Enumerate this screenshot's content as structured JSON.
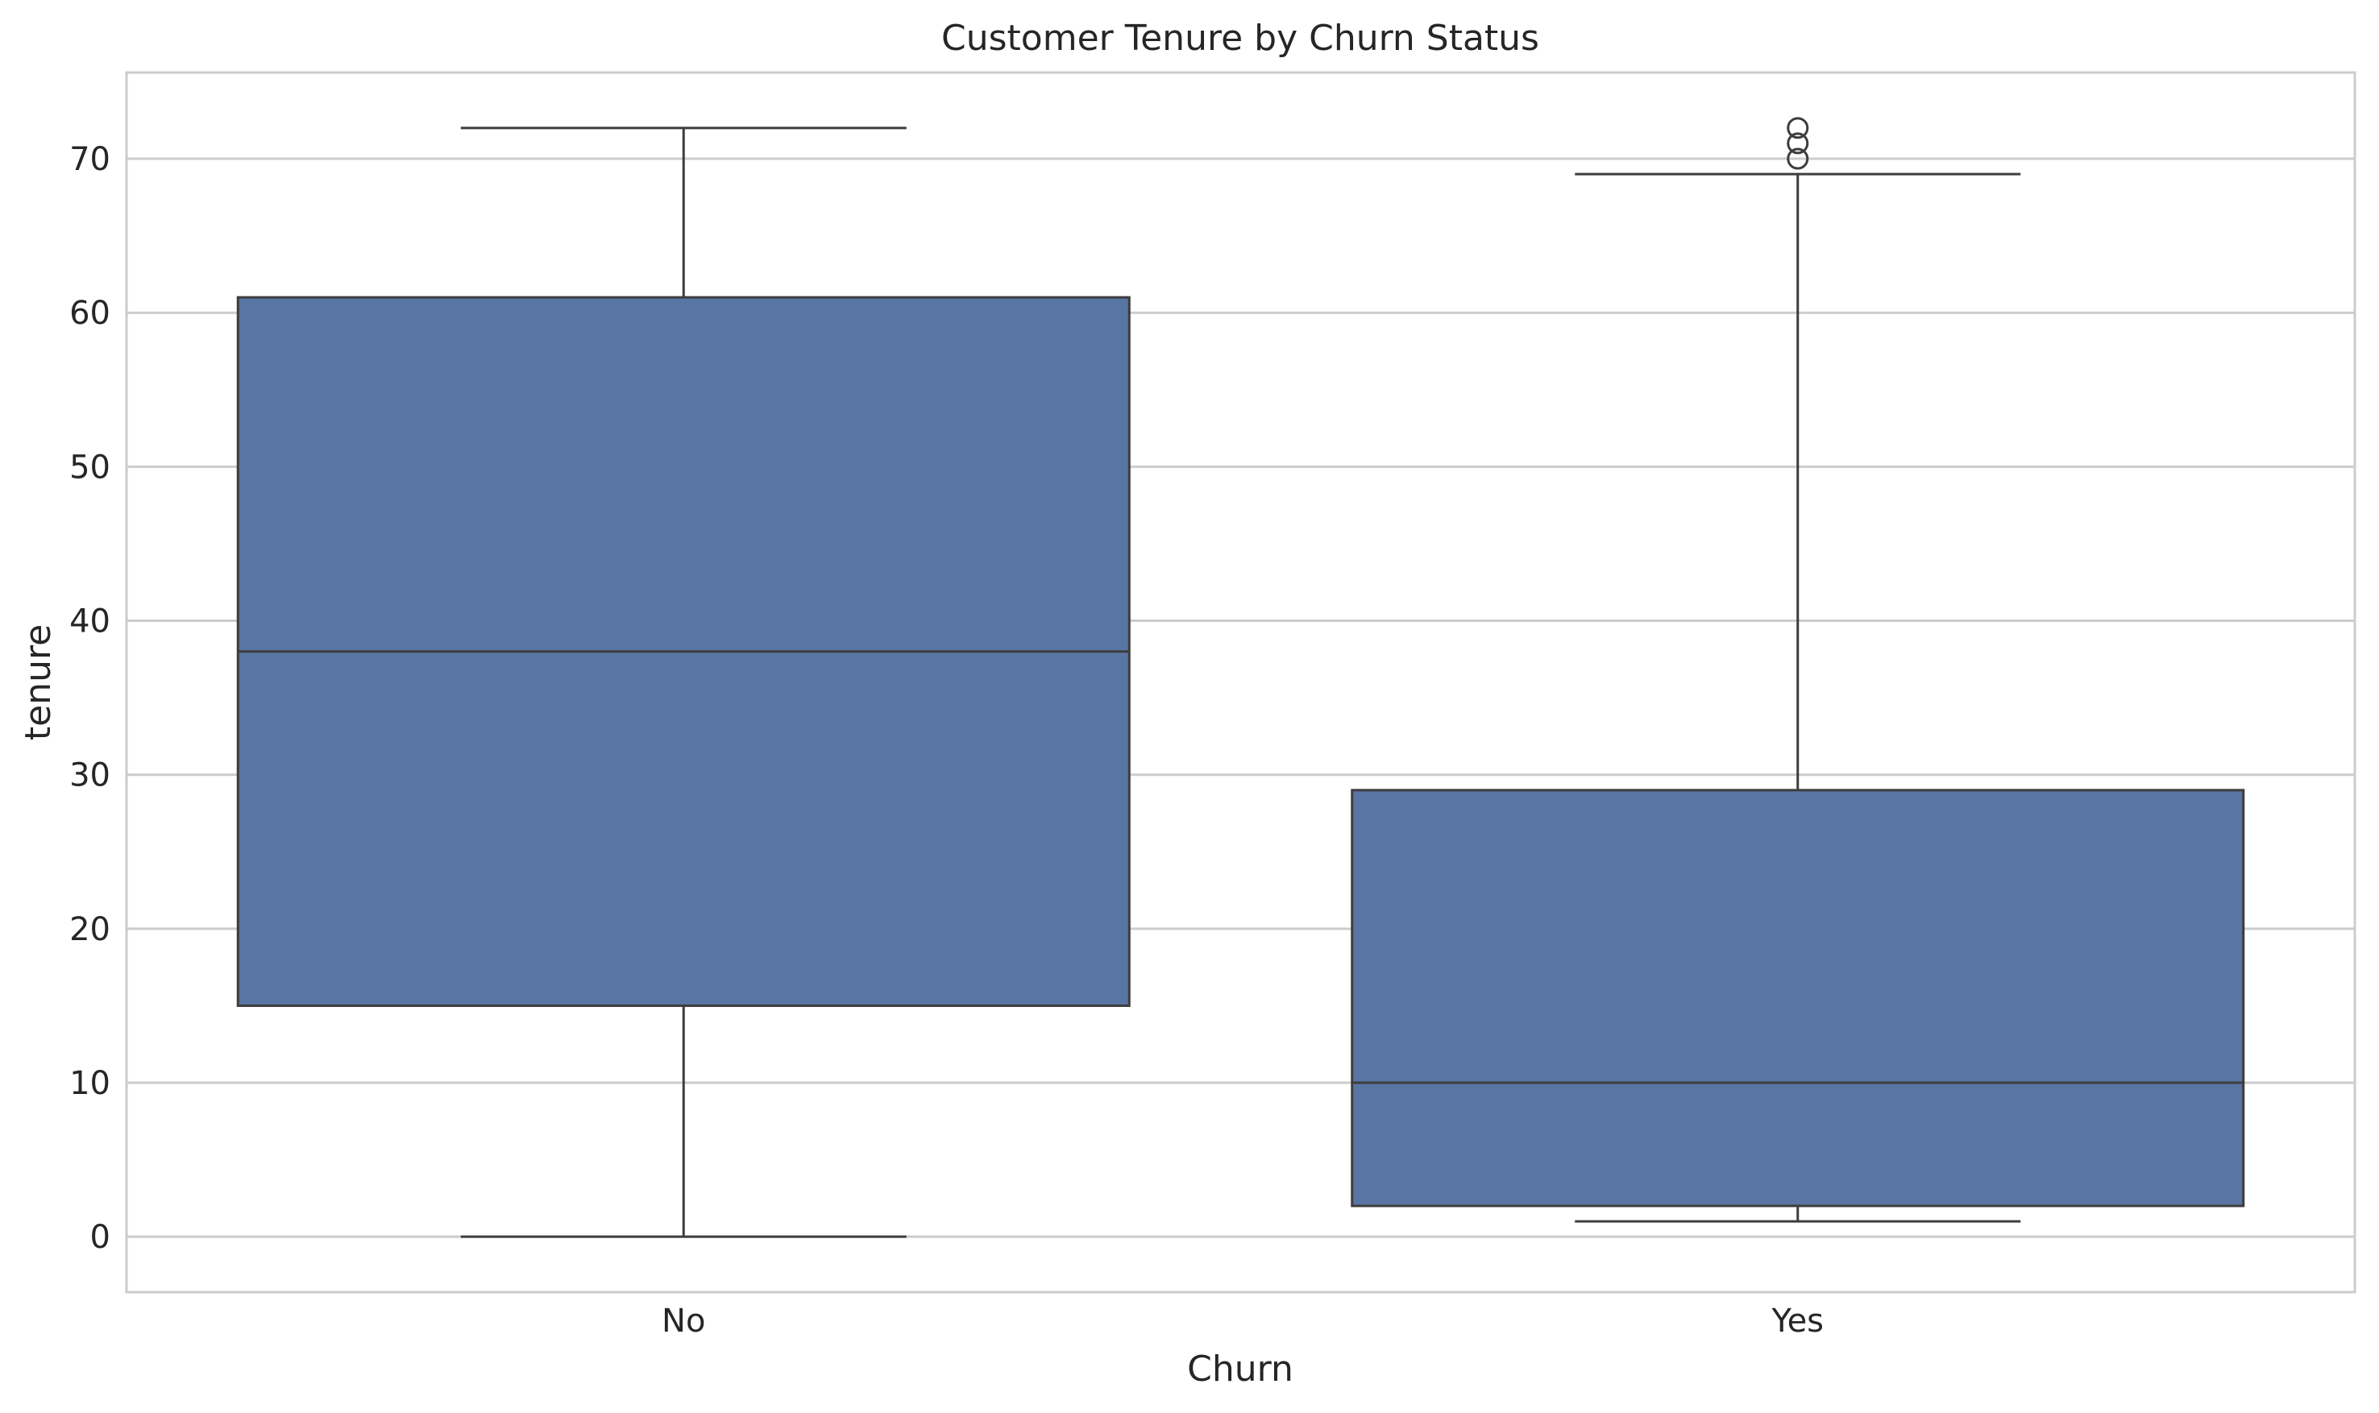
{
  "chart_data": {
    "type": "box",
    "title": "Customer Tenure by Churn Status",
    "xlabel": "Churn",
    "ylabel": "tenure",
    "categories": [
      "No",
      "Yes"
    ],
    "ylim": [
      -3.6,
      75.6
    ],
    "yticks": [
      0,
      10,
      20,
      30,
      40,
      50,
      60,
      70
    ],
    "grid": "horizontal",
    "boxes": [
      {
        "category": "No",
        "whisker_low": 0,
        "q1": 15,
        "median": 38,
        "q3": 61,
        "whisker_high": 72,
        "outliers": []
      },
      {
        "category": "Yes",
        "whisker_low": 1,
        "q1": 2,
        "median": 10,
        "q3": 29,
        "whisker_high": 69,
        "outliers": [
          70,
          71,
          72
        ]
      }
    ],
    "colors": {
      "box_fill": "#5975a4",
      "line": "#3d3d3d",
      "grid": "#cccccc",
      "frame": "#cccccc"
    }
  }
}
